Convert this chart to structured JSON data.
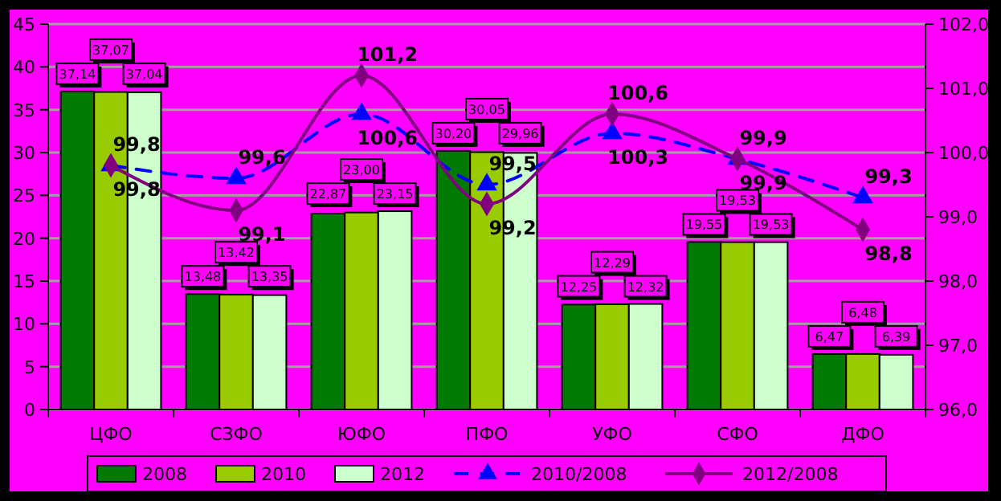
{
  "chart_data": {
    "type": "bar",
    "categories": [
      "ЦФО",
      "СЗФО",
      "ЮФО",
      "ПФО",
      "УФО",
      "СФО",
      "ДФО"
    ],
    "series": [
      {
        "name": "2008",
        "color": "#007a00",
        "values": [
          37.14,
          13.48,
          22.87,
          30.2,
          12.25,
          19.55,
          6.47
        ],
        "value_labels": [
          "37,14",
          "13,48",
          "22,87",
          "30,20",
          "12,25",
          "19,55",
          "6,47"
        ]
      },
      {
        "name": "2010",
        "color": "#99cc00",
        "values": [
          37.07,
          13.42,
          23.0,
          30.05,
          12.29,
          19.53,
          6.48
        ],
        "value_labels": [
          "37,07",
          "13,42",
          "23,00",
          "30,05",
          "12,29",
          "19,53",
          "6,48"
        ]
      },
      {
        "name": "2012",
        "color": "#ccffcc",
        "values": [
          37.04,
          13.35,
          23.15,
          29.96,
          12.32,
          19.53,
          6.39
        ],
        "value_labels": [
          "37,04",
          "13,35",
          "23,15",
          "29,96",
          "12,32",
          "19,53",
          "6,39"
        ]
      },
      {
        "name": "2010/2008",
        "type": "line",
        "axis": "y2",
        "color": "#0000ff",
        "marker": "triangle",
        "line_style": "dashed",
        "values": [
          99.8,
          99.6,
          100.6,
          99.5,
          100.3,
          99.9,
          99.3
        ],
        "value_labels": [
          "99,8",
          "99,6",
          "100,6",
          "99,5",
          "100,3",
          "99,9",
          "99,3"
        ]
      },
      {
        "name": "2012/2008",
        "type": "line",
        "axis": "y2",
        "color": "#800080",
        "marker": "diamond",
        "line_style": "solid",
        "values": [
          99.8,
          99.1,
          101.2,
          99.2,
          100.6,
          99.9,
          98.8
        ],
        "value_labels": [
          "99,8",
          "99,1",
          "101,2",
          "99,2",
          "100,6",
          "99,9",
          "98,8"
        ]
      }
    ],
    "ylim": [
      0,
      45
    ],
    "yticks": [
      0,
      5,
      10,
      15,
      20,
      25,
      30,
      35,
      40,
      45
    ],
    "y2lim": [
      96,
      102
    ],
    "y2ticks": [
      {
        "value": 96,
        "label": "96,0"
      },
      {
        "value": 97,
        "label": "97,0"
      },
      {
        "value": 98,
        "label": "98,0"
      },
      {
        "value": 99,
        "label": "99,0"
      },
      {
        "value": 100,
        "label": "100,0"
      },
      {
        "value": 101,
        "label": "101,0"
      },
      {
        "value": 102,
        "label": "102,0"
      }
    ],
    "grid": "y",
    "legend": "bottom"
  }
}
